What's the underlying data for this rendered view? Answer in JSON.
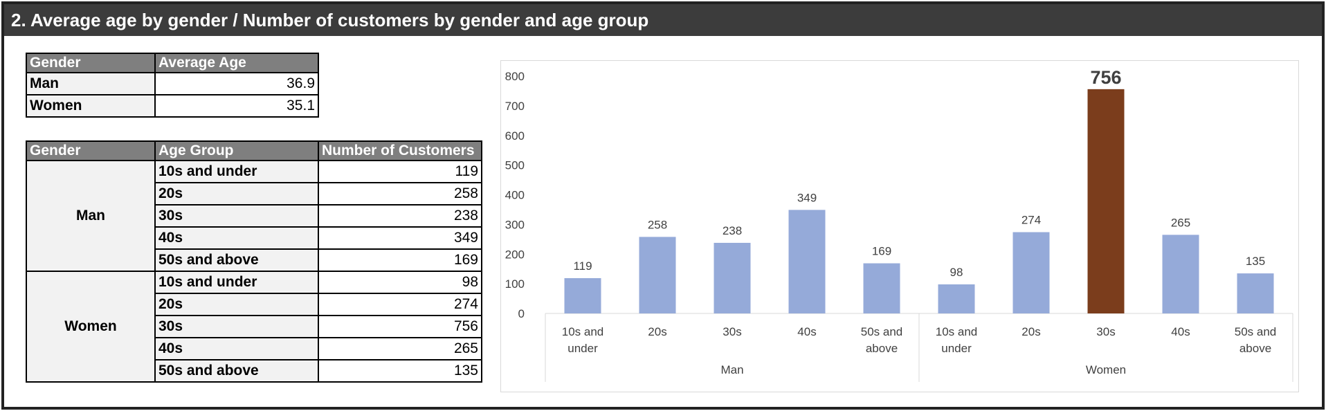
{
  "header": {
    "title": "2. Average age by gender / Number of customers by gender and age group"
  },
  "avg_table": {
    "headers": [
      "Gender",
      "Average Age"
    ],
    "rows": [
      {
        "gender": "Man",
        "avg": "36.9"
      },
      {
        "gender": "Women",
        "avg": "35.1"
      }
    ]
  },
  "cust_table": {
    "headers": [
      "Gender",
      "Age Group",
      "Number of Customers"
    ],
    "groups": [
      {
        "gender": "Man",
        "rows": [
          {
            "age": "10s and under",
            "count": "119"
          },
          {
            "age": "20s",
            "count": "258"
          },
          {
            "age": "30s",
            "count": "238"
          },
          {
            "age": "40s",
            "count": "349"
          },
          {
            "age": "50s and above",
            "count": "169"
          }
        ]
      },
      {
        "gender": "Women",
        "rows": [
          {
            "age": "10s and under",
            "count": "98"
          },
          {
            "age": "20s",
            "count": "274"
          },
          {
            "age": "30s",
            "count": "756"
          },
          {
            "age": "40s",
            "count": "265"
          },
          {
            "age": "50s and above",
            "count": "135"
          }
        ]
      }
    ]
  },
  "chart_data": {
    "type": "bar",
    "title": "",
    "xlabel": "",
    "ylabel": "",
    "ylim": [
      0,
      800
    ],
    "yticks": [
      0,
      100,
      200,
      300,
      400,
      500,
      600,
      700,
      800
    ],
    "grid": false,
    "groups": [
      "Man",
      "Women"
    ],
    "categories": [
      "10s and under",
      "20s",
      "30s",
      "40s",
      "50s and above"
    ],
    "category_labels": [
      [
        "10s and",
        "under"
      ],
      [
        "20s"
      ],
      [
        "30s"
      ],
      [
        "40s"
      ],
      [
        "50s and",
        "above"
      ]
    ],
    "series": [
      {
        "group": "Man",
        "values": [
          119,
          258,
          238,
          349,
          169
        ]
      },
      {
        "group": "Women",
        "values": [
          98,
          274,
          756,
          265,
          135
        ]
      }
    ],
    "highlight": {
      "group": "Women",
      "category": "30s",
      "value": 756
    },
    "colors": {
      "bar": "#95aad9",
      "highlight": "#7b3d1c",
      "axis": "#d9d9d9",
      "text": "#404040"
    }
  }
}
